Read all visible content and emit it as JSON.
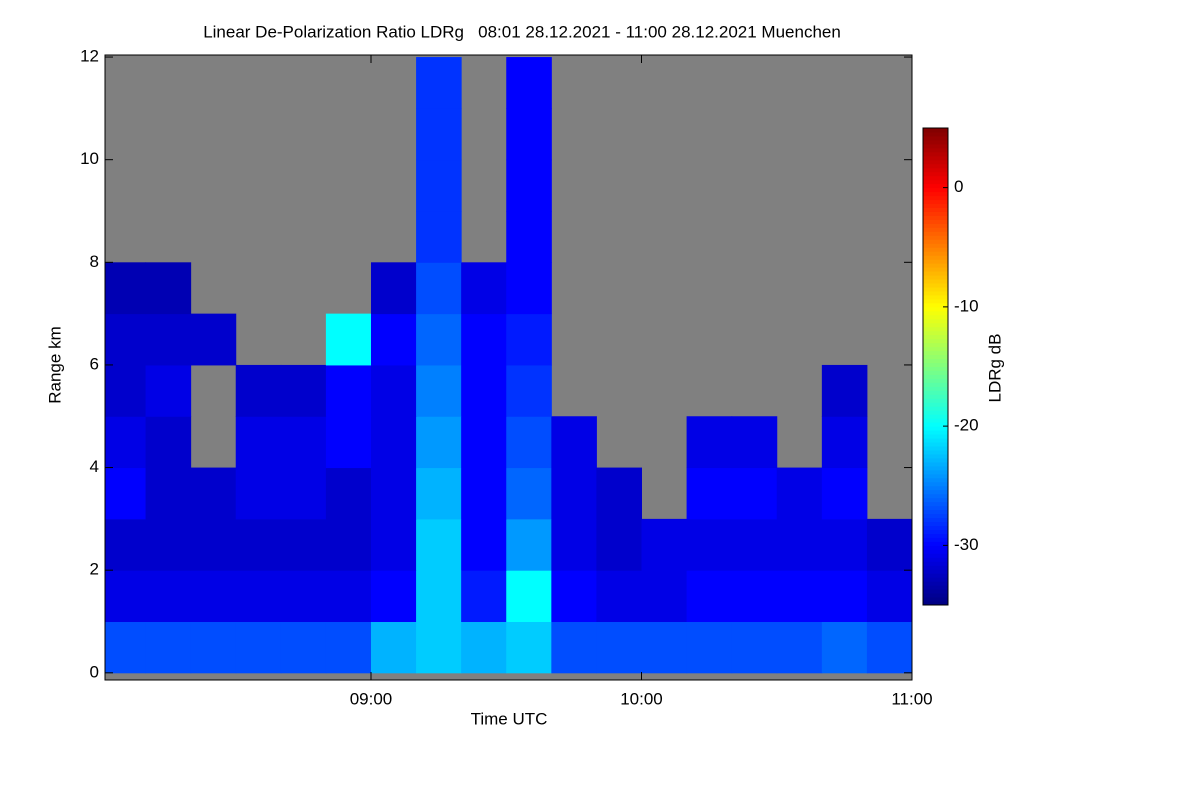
{
  "chart_data": {
    "type": "heatmap",
    "title": "Linear De-Polarization Ratio LDRg   08:01 28.12.2021 - 11:00 28.12.2021 Muenchen",
    "x_label": "Time UTC",
    "y_label": "Range km",
    "colorbar_label": "LDRg dB",
    "colormap": "jet",
    "missing_color": "#808080",
    "x_edges": [
      8.0167,
      8.1667,
      8.3333,
      8.5,
      8.6667,
      8.8333,
      9.0,
      9.1667,
      9.3333,
      9.5,
      9.6667,
      9.8333,
      10.0,
      10.1667,
      10.3333,
      10.5,
      10.6667,
      10.8333,
      11.0
    ],
    "y_edges": [
      0,
      1,
      2,
      3,
      4,
      5,
      6,
      7,
      8,
      9,
      10,
      11,
      12
    ],
    "z": [
      [
        -27,
        -27,
        -27,
        -27,
        -27,
        -27,
        -23,
        -22,
        -23,
        -22,
        -27,
        -27,
        -27,
        -27,
        -27,
        -27,
        -26,
        -27
      ],
      [
        -31,
        -31,
        -31,
        -31,
        -31,
        -31,
        -30,
        -22,
        -29,
        -20,
        -30,
        -31,
        -31,
        -30,
        -30,
        -30,
        -30,
        -31
      ],
      [
        -32,
        -32,
        -32,
        -32,
        -32,
        -32,
        -31,
        -22,
        -30,
        -24,
        -31,
        -32,
        -31,
        -31,
        -31,
        -31,
        -31,
        -32
      ],
      [
        -30,
        -32,
        -32,
        -31,
        -31,
        -32,
        -31,
        -23,
        -30,
        -26,
        -31,
        -32,
        null,
        -30,
        -30,
        -31,
        -30,
        null
      ],
      [
        -31,
        -32,
        null,
        -31,
        -31,
        -30,
        -31,
        -24,
        -30,
        -27,
        -31,
        null,
        null,
        -31,
        -31,
        null,
        -31,
        null
      ],
      [
        -32,
        -31,
        null,
        -32,
        -32,
        -30,
        -31,
        -25,
        -30,
        -28,
        null,
        null,
        null,
        null,
        null,
        null,
        -32,
        null
      ],
      [
        -32,
        -32,
        -32,
        null,
        null,
        -20,
        -30,
        -26,
        -30,
        -29,
        null,
        null,
        null,
        null,
        null,
        null,
        null,
        null
      ],
      [
        -33,
        -33,
        null,
        null,
        null,
        null,
        -32,
        -27,
        -31,
        -30,
        null,
        null,
        null,
        null,
        null,
        null,
        null,
        null
      ],
      [
        null,
        null,
        null,
        null,
        null,
        null,
        null,
        -28,
        null,
        -30,
        null,
        null,
        null,
        null,
        null,
        null,
        null,
        null
      ],
      [
        null,
        null,
        null,
        null,
        null,
        null,
        null,
        -28,
        null,
        -30,
        null,
        null,
        null,
        null,
        null,
        null,
        null,
        null
      ],
      [
        null,
        null,
        null,
        null,
        null,
        null,
        null,
        -28,
        null,
        -30,
        null,
        null,
        null,
        null,
        null,
        null,
        null,
        null
      ],
      [
        null,
        null,
        null,
        null,
        null,
        null,
        null,
        -28,
        null,
        -30,
        null,
        null,
        null,
        null,
        null,
        null,
        null,
        null
      ]
    ],
    "xlim": [
      8.0167,
      11.0
    ],
    "xticks": [
      {
        "value": 9,
        "label": "09:00"
      },
      {
        "value": 10,
        "label": "10:00"
      },
      {
        "value": 11,
        "label": "11:00"
      }
    ],
    "ylim": [
      -0.14,
      12.04
    ],
    "yticks": [
      0,
      2,
      4,
      6,
      8,
      10,
      12
    ],
    "clim": [
      -35,
      5
    ],
    "cticks": [
      0,
      -10,
      -20,
      -30
    ]
  }
}
